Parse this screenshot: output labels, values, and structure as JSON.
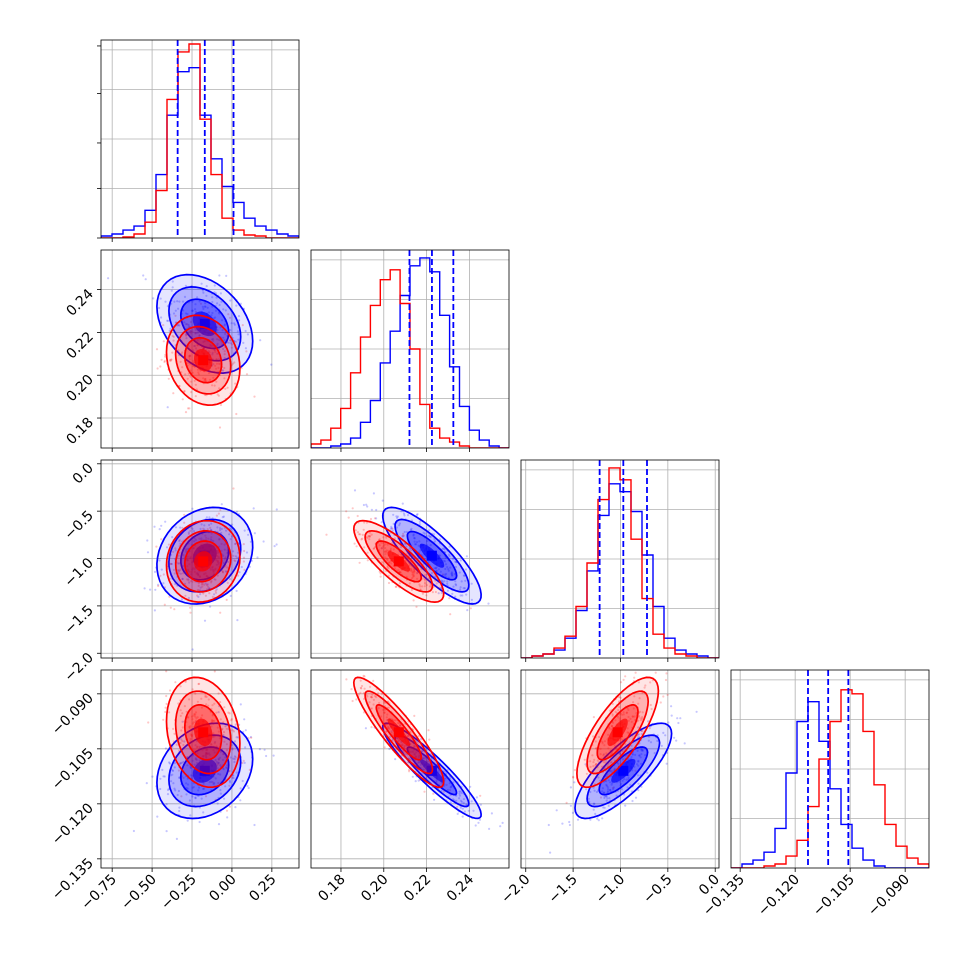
{
  "chart_data": {
    "type": "corner",
    "grid": true,
    "colors": {
      "series_a": "#0000ff",
      "series_b": "#ff0000"
    },
    "params": [
      {
        "ticks": [
          -0.75,
          -0.5,
          -0.25,
          0.0,
          0.25
        ],
        "tick_labels": [
          "−0.75",
          "−0.50",
          "−0.25",
          "0.00",
          "0.25"
        ],
        "range": [
          -0.82,
          0.42
        ]
      },
      {
        "ticks": [
          0.18,
          0.2,
          0.22,
          0.24
        ],
        "tick_labels": [
          "0.18",
          "0.20",
          "0.22",
          "0.24"
        ],
        "range": [
          0.166,
          0.2585
        ]
      },
      {
        "ticks": [
          -2.0,
          -1.5,
          -1.0,
          -0.5,
          0.0
        ],
        "tick_labels": [
          "−2.0",
          "−1.5",
          "−1.0",
          "−0.5",
          "0.0"
        ],
        "range": [
          -2.05,
          0.04
        ]
      },
      {
        "ticks": [
          -0.135,
          -0.12,
          -0.105,
          -0.09
        ],
        "tick_labels": [
          "−0.135",
          "−0.120",
          "−0.105",
          "−0.090"
        ],
        "range": [
          -0.1375,
          -0.0835
        ]
      }
    ],
    "quantiles": [
      [
        -0.34,
        -0.17,
        0.01
      ],
      [
        0.212,
        0.2225,
        0.2325
      ],
      [
        -1.22,
        -0.97,
        -0.72
      ],
      [
        -0.1165,
        -0.111,
        -0.1055
      ]
    ],
    "histograms": [
      {
        "bins": [
          -0.82,
          0.42
        ],
        "a": [
          0.01,
          0.02,
          0.04,
          0.06,
          0.14,
          0.32,
          0.62,
          0.84,
          0.86,
          0.62,
          0.4,
          0.26,
          0.18,
          0.1,
          0.06,
          0.04,
          0.02,
          0.01
        ],
        "b": [
          0,
          0,
          0.005,
          0.02,
          0.08,
          0.24,
          0.7,
          0.94,
          0.98,
          0.6,
          0.32,
          0.1,
          0.04,
          0.015,
          0.01,
          0,
          0,
          0
        ]
      },
      {
        "bins": [
          0.166,
          0.2585
        ],
        "a": [
          0,
          0,
          0.01,
          0.02,
          0.05,
          0.13,
          0.24,
          0.43,
          0.59,
          0.77,
          0.92,
          0.96,
          0.89,
          0.67,
          0.41,
          0.21,
          0.09,
          0.04,
          0.01,
          0
        ],
        "b": [
          0.02,
          0.04,
          0.1,
          0.2,
          0.38,
          0.56,
          0.72,
          0.85,
          0.9,
          0.73,
          0.5,
          0.22,
          0.1,
          0.05,
          0.03,
          0.01,
          0,
          0,
          0,
          0
        ]
      },
      {
        "bins": [
          -2.05,
          0.04
        ],
        "a": [
          0,
          0.01,
          0.02,
          0.04,
          0.1,
          0.24,
          0.44,
          0.72,
          0.88,
          0.84,
          0.74,
          0.52,
          0.26,
          0.1,
          0.04,
          0.02,
          0.01,
          0
        ],
        "b": [
          0,
          0.01,
          0.02,
          0.05,
          0.11,
          0.26,
          0.48,
          0.8,
          0.96,
          0.9,
          0.6,
          0.3,
          0.12,
          0.05,
          0.02,
          0.01,
          0,
          0
        ]
      },
      {
        "bins": [
          -0.1375,
          -0.0835
        ],
        "a": [
          0,
          0.02,
          0.04,
          0.08,
          0.2,
          0.48,
          0.74,
          0.84,
          0.64,
          0.4,
          0.22,
          0.1,
          0.04,
          0.01,
          0,
          0,
          0,
          0
        ],
        "b": [
          0,
          0,
          0,
          0.01,
          0.02,
          0.06,
          0.14,
          0.31,
          0.55,
          0.74,
          0.9,
          0.88,
          0.69,
          0.42,
          0.22,
          0.11,
          0.05,
          0.02
        ]
      }
    ],
    "pairs": [
      {
        "x": 0,
        "y": 1,
        "a": {
          "mean": [
            -0.17,
            0.224
          ],
          "sd": [
            0.15,
            0.0115
          ],
          "r": -0.35
        },
        "b": {
          "mean": [
            -0.18,
            0.207
          ],
          "sd": [
            0.115,
            0.0105
          ],
          "r": -0.18
        }
      },
      {
        "x": 0,
        "y": 2,
        "a": {
          "mean": [
            -0.17,
            -0.97
          ],
          "sd": [
            0.15,
            0.255
          ],
          "r": 0.2
        },
        "b": {
          "mean": [
            -0.18,
            -1.03
          ],
          "sd": [
            0.115,
            0.215
          ],
          "r": 0.1
        }
      },
      {
        "x": 1,
        "y": 2,
        "a": {
          "mean": [
            0.2225,
            -0.97
          ],
          "sd": [
            0.0115,
            0.255
          ],
          "r": -0.82
        },
        "b": {
          "mean": [
            0.207,
            -1.03
          ],
          "sd": [
            0.0105,
            0.215
          ],
          "r": -0.8
        }
      },
      {
        "x": 0,
        "y": 3,
        "a": {
          "mean": [
            -0.17,
            -0.111
          ],
          "sd": [
            0.15,
            0.0065
          ],
          "r": 0.25
        },
        "b": {
          "mean": [
            -0.18,
            -0.1005
          ],
          "sd": [
            0.115,
            0.0075
          ],
          "r": -0.2
        }
      },
      {
        "x": 1,
        "y": 3,
        "a": {
          "mean": [
            0.2225,
            -0.111
          ],
          "sd": [
            0.0115,
            0.0065
          ],
          "r": -0.92
        },
        "b": {
          "mean": [
            0.207,
            -0.1005
          ],
          "sd": [
            0.0105,
            0.0075
          ],
          "r": -0.9
        }
      },
      {
        "x": 2,
        "y": 3,
        "a": {
          "mean": [
            -0.97,
            -0.111
          ],
          "sd": [
            0.255,
            0.0065
          ],
          "r": 0.78
        },
        "b": {
          "mean": [
            -1.03,
            -0.1005
          ],
          "sd": [
            0.215,
            0.0075
          ],
          "r": 0.75
        }
      }
    ]
  }
}
